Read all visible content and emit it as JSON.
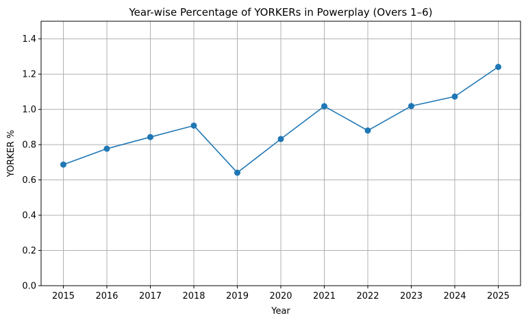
{
  "chart_data": {
    "type": "line",
    "title": "Year-wise Percentage of YORKERs in Powerplay (Overs 1–6)",
    "xlabel": "Year",
    "ylabel": "YORKER %",
    "x": [
      "2015",
      "2016",
      "2017",
      "2018",
      "2019",
      "2020",
      "2021",
      "2022",
      "2023",
      "2024",
      "2025"
    ],
    "series": [
      {
        "values": [
          0.687,
          0.777,
          0.843,
          0.908,
          0.641,
          0.832,
          1.018,
          0.88,
          1.019,
          1.073,
          1.241
        ]
      }
    ],
    "ylim": [
      0,
      1.5
    ],
    "yticks": [
      "0.0",
      "0.2",
      "0.4",
      "0.6",
      "0.8",
      "1.0",
      "1.2",
      "1.4"
    ],
    "grid": true,
    "line_color": "#1f77b4"
  }
}
